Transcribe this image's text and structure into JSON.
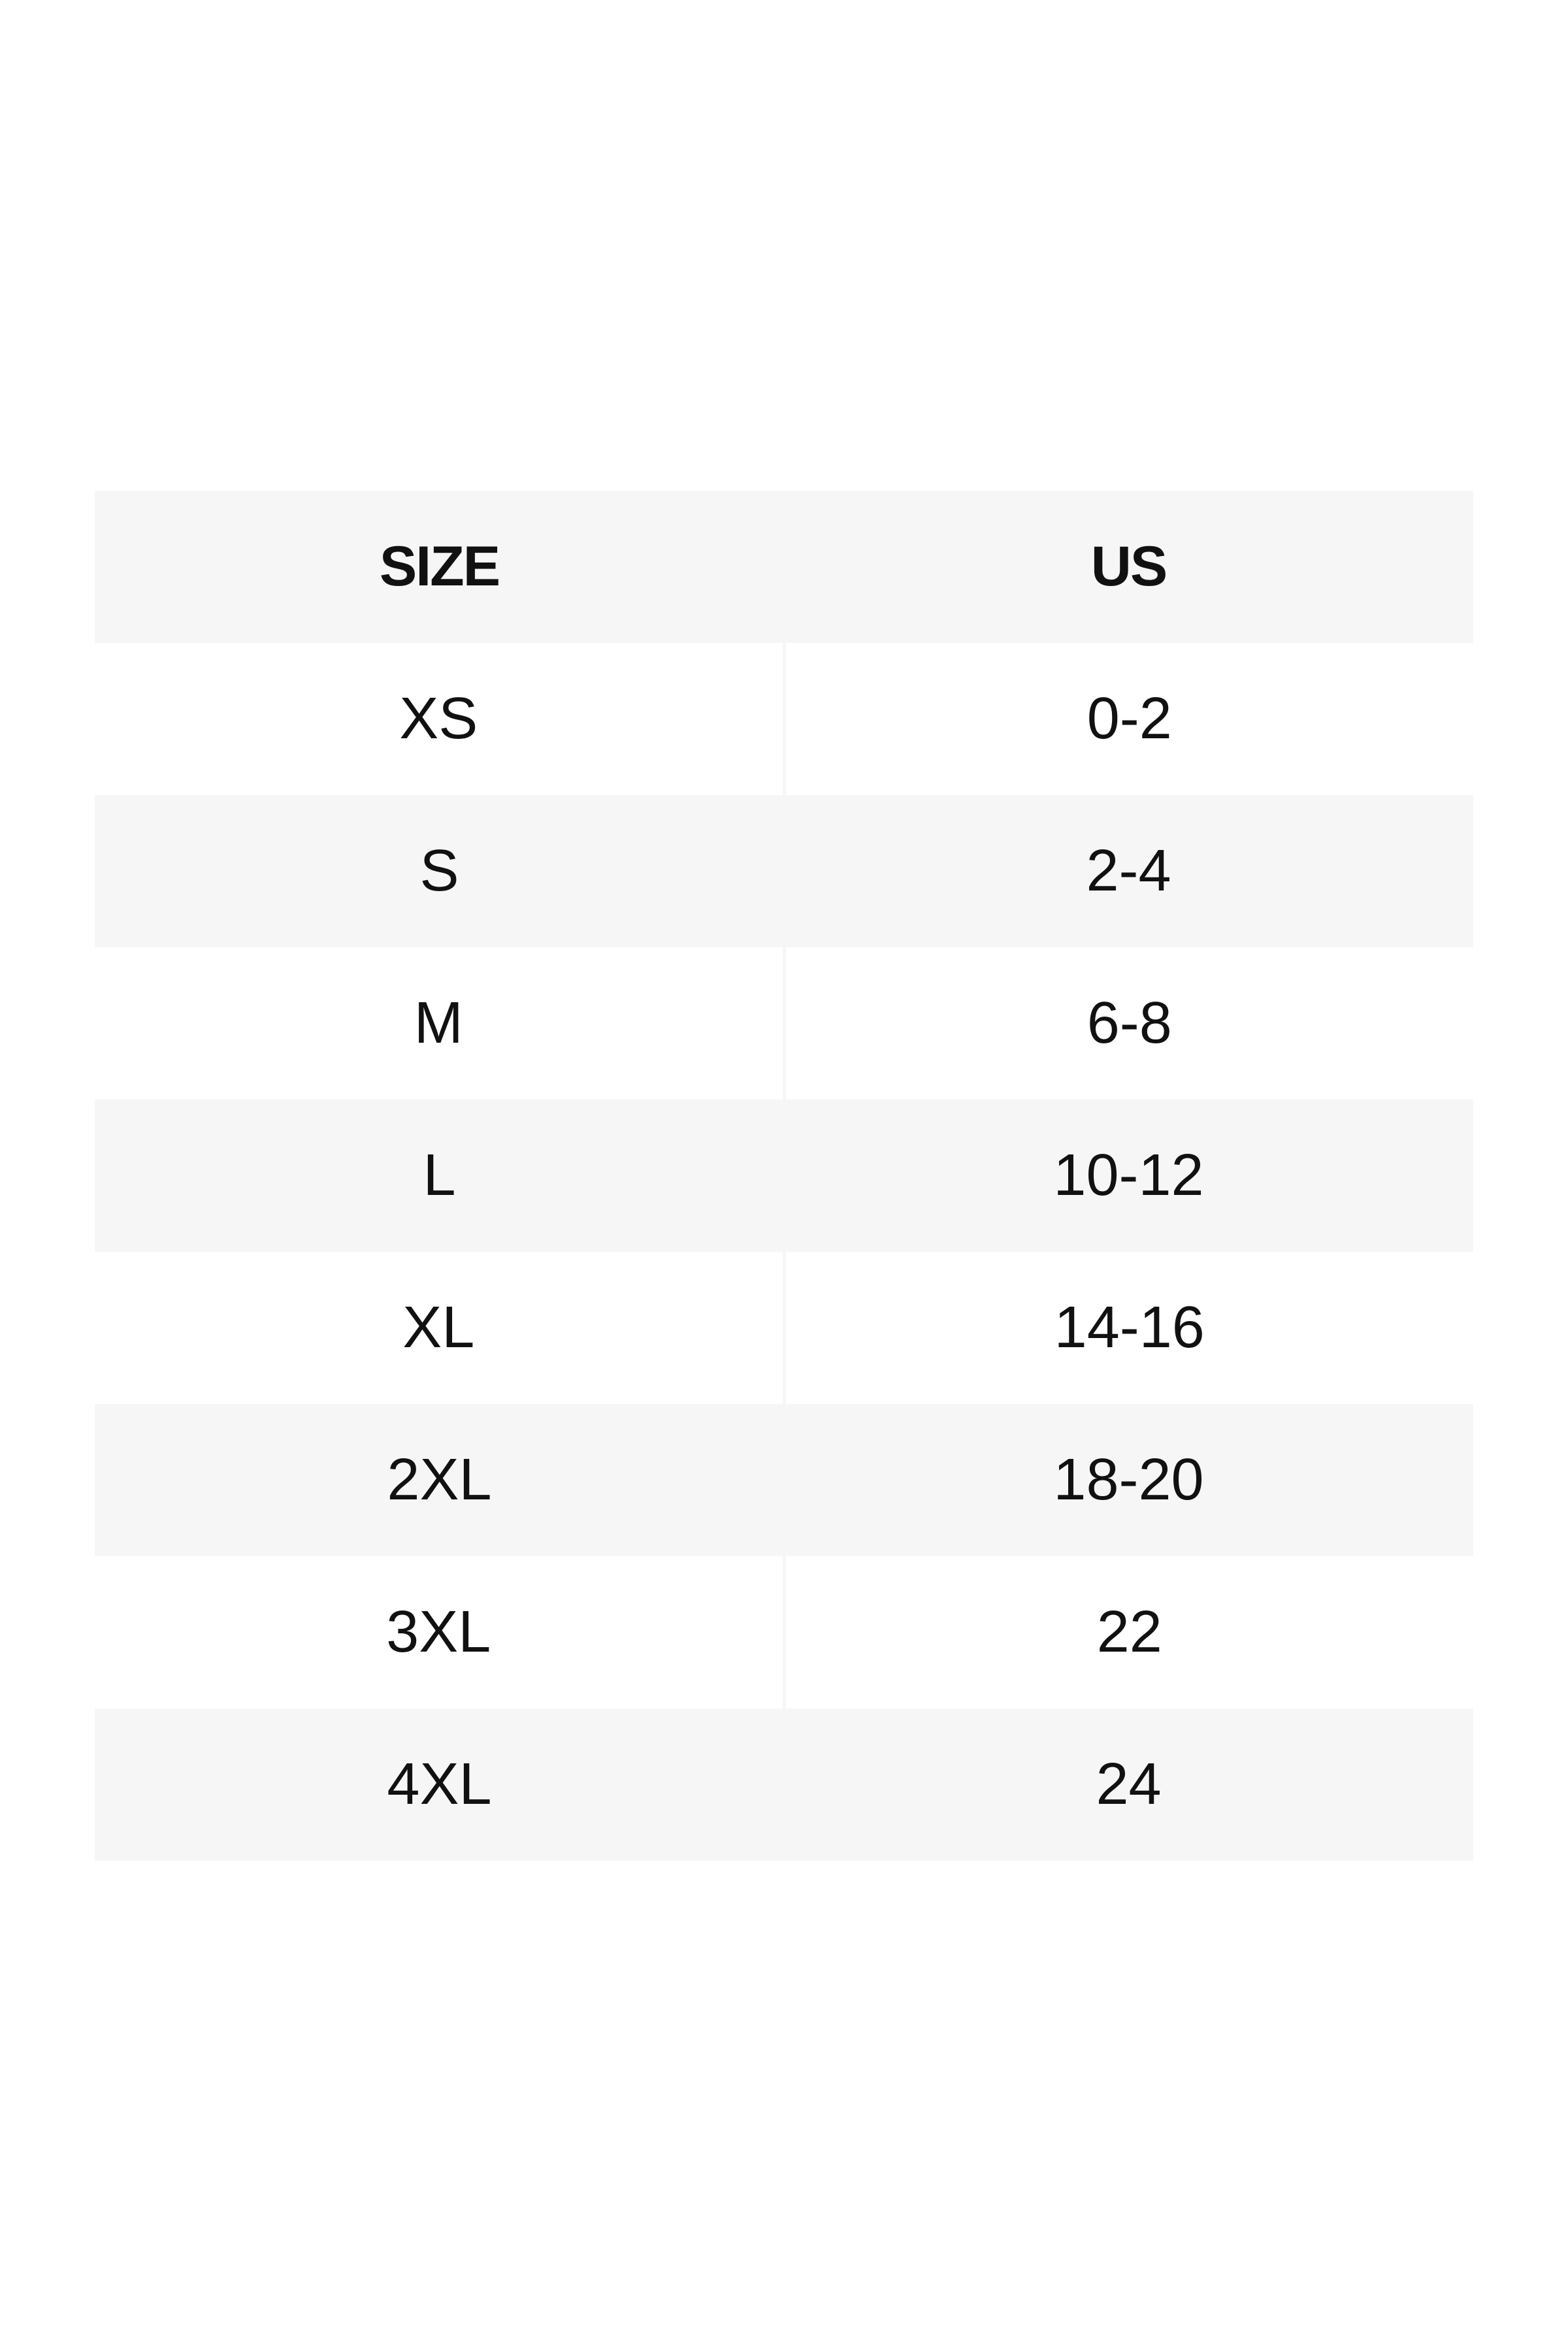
{
  "table": {
    "headers": [
      "SIZE",
      "US"
    ],
    "rows": [
      [
        "XS",
        "0-2"
      ],
      [
        "S",
        "2-4"
      ],
      [
        "M",
        "6-8"
      ],
      [
        "L",
        "10-12"
      ],
      [
        "XL",
        "14-16"
      ],
      [
        "2XL",
        "18-20"
      ],
      [
        "3XL",
        "22"
      ],
      [
        "4XL",
        "24"
      ]
    ]
  },
  "colors": {
    "shaded_row": "#f6f6f6",
    "text": "#111111"
  }
}
